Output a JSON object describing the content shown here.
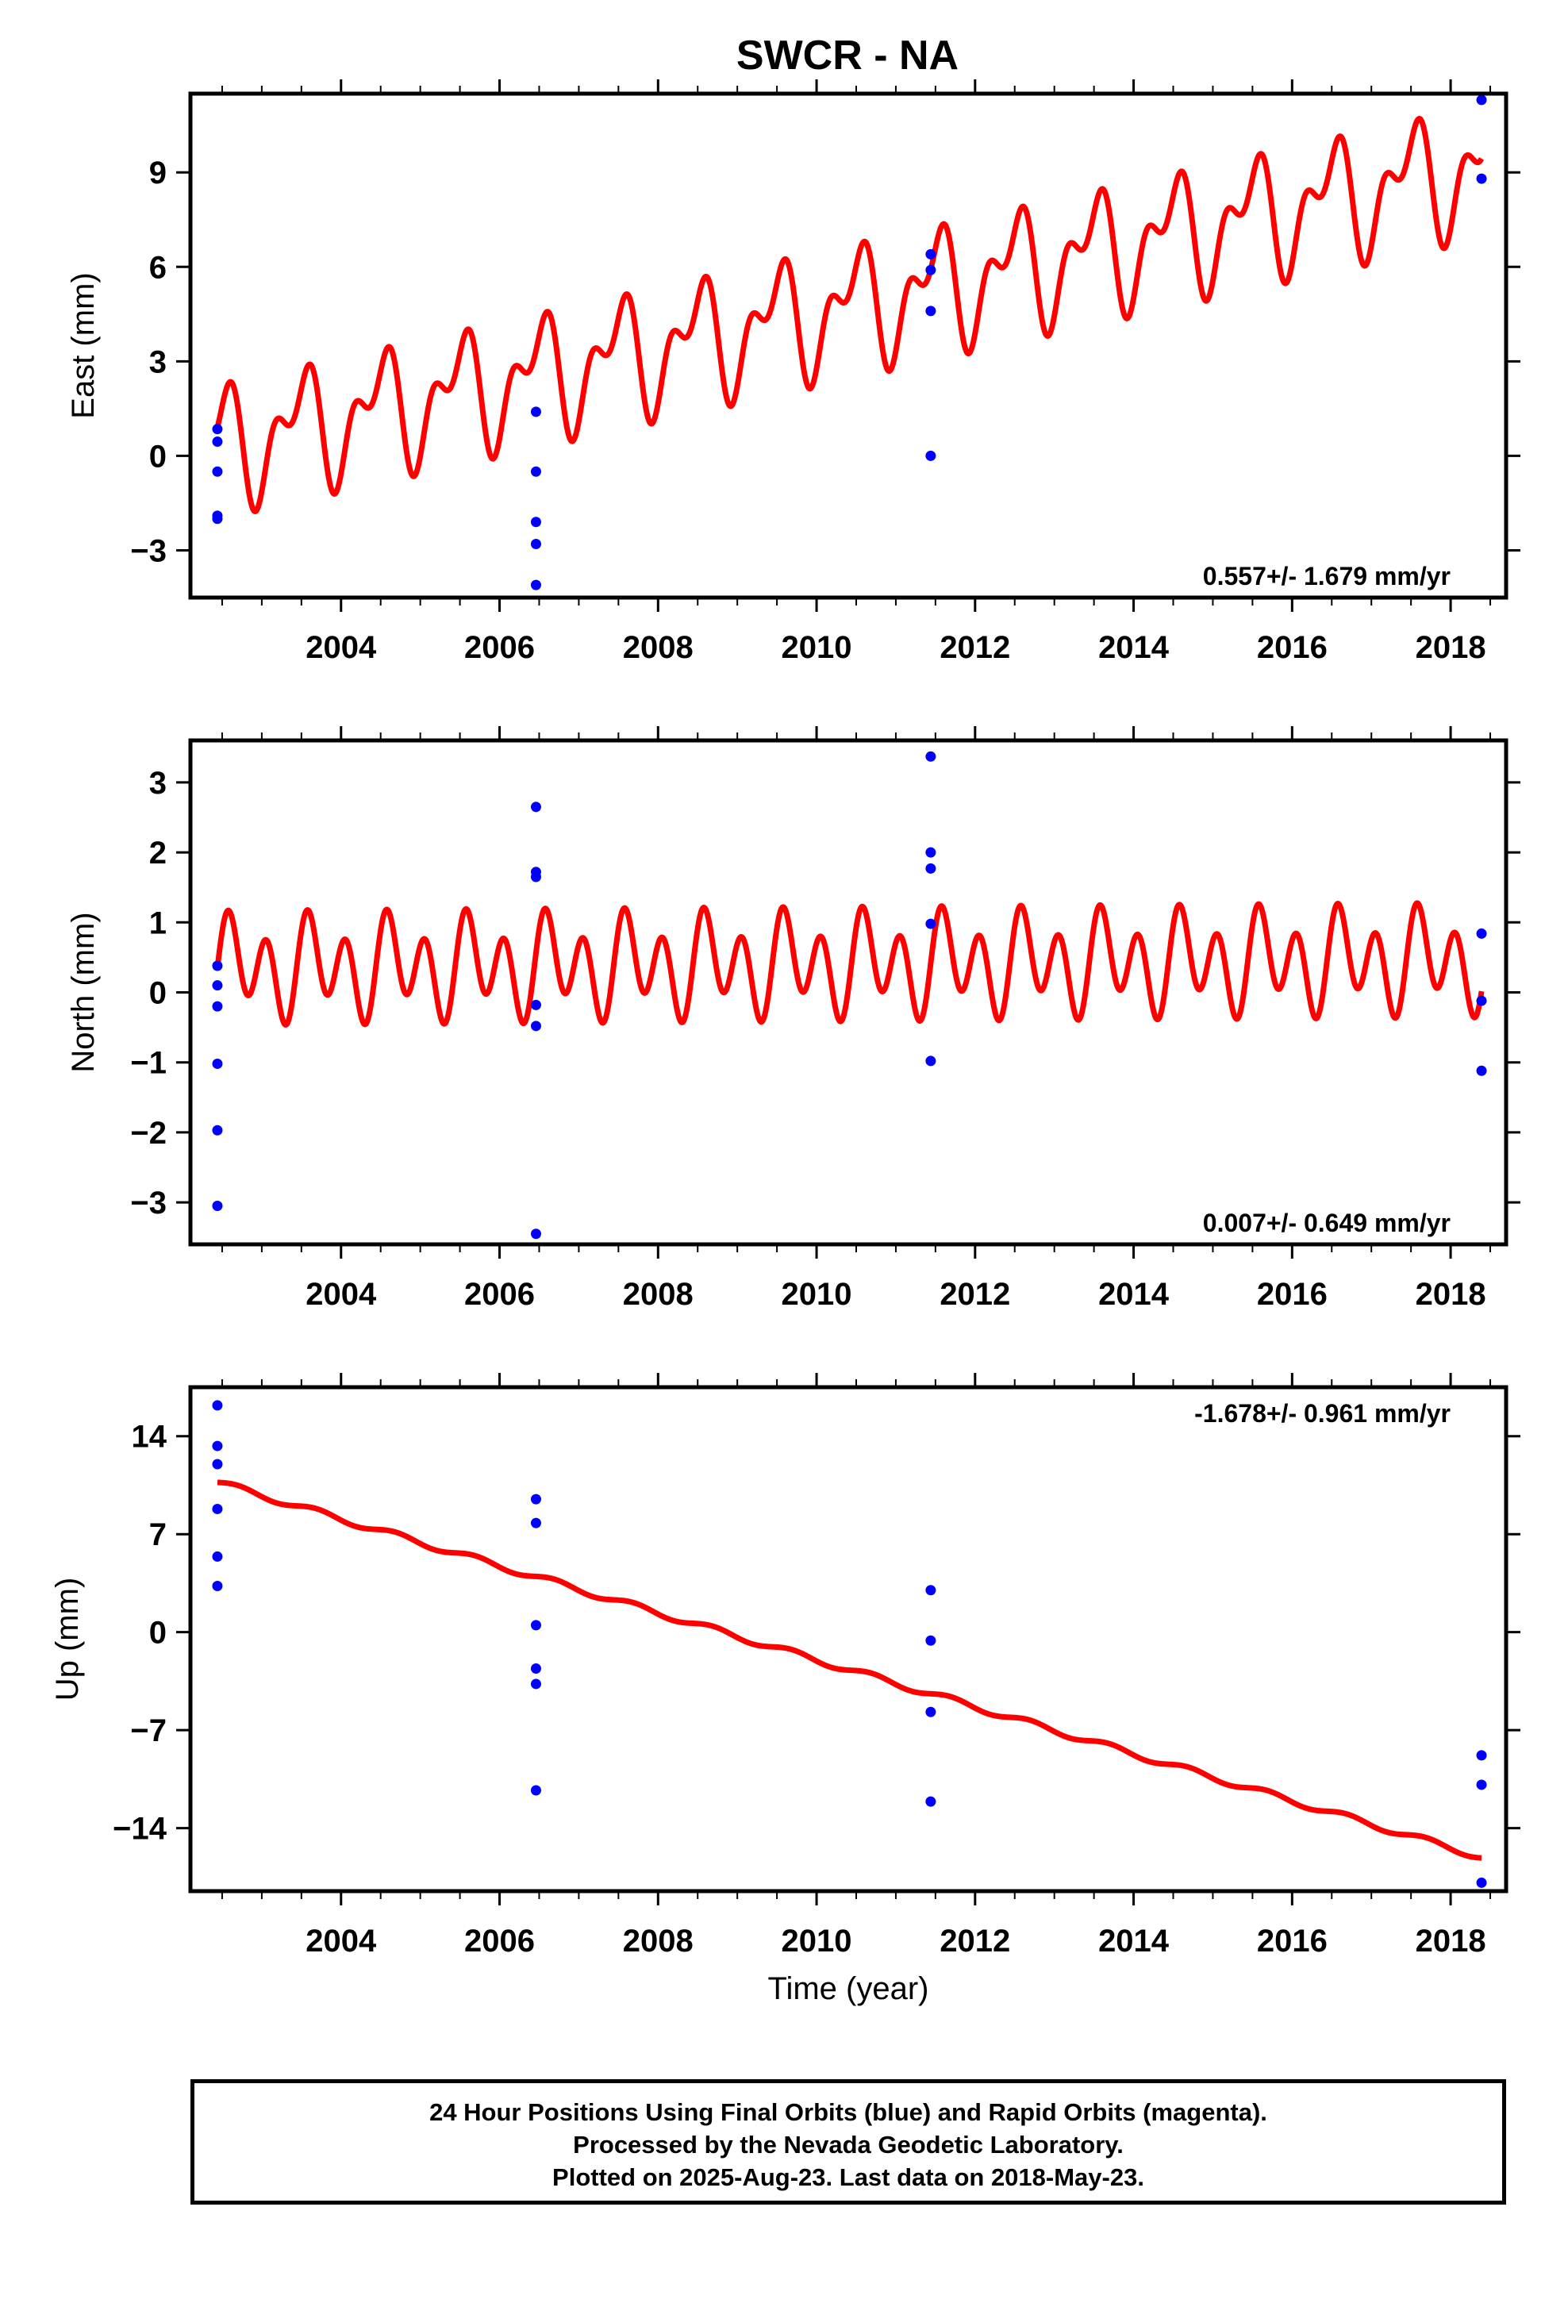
{
  "title": "SWCR - NA",
  "colors": {
    "model": "#ff0000",
    "points": "#0000ff",
    "frame": "#000000"
  },
  "footer": {
    "line1": "24 Hour Positions Using Final Orbits (blue) and Rapid Orbits (magenta).",
    "line2": "Processed by the Nevada Geodetic Laboratory.",
    "line3": "Plotted on 2025-Aug-23. Last data on 2018-May-23."
  },
  "chart_data": [
    {
      "type": "scatter",
      "ylabel": "East (mm)",
      "xlabel": "",
      "xlim": [
        2002.1,
        2018.7
      ],
      "ylim": [
        -4.5,
        11.5
      ],
      "xticks": [
        2004,
        2006,
        2008,
        2010,
        2012,
        2014,
        2016,
        2018
      ],
      "yticks": [
        -3,
        0,
        3,
        6,
        9
      ],
      "ytick_labels": [
        "−3",
        "0",
        "3",
        "6",
        "9"
      ],
      "rate_label": "0.557+/- 1.679 mm/yr",
      "rate_position": "bottom-right",
      "points": [
        [
          2002.44,
          0.85
        ],
        [
          2002.44,
          0.45
        ],
        [
          2002.44,
          -0.5
        ],
        [
          2002.44,
          -1.9
        ],
        [
          2002.44,
          -2.0
        ],
        [
          2006.46,
          1.4
        ],
        [
          2006.46,
          -0.5
        ],
        [
          2006.46,
          -2.1
        ],
        [
          2006.46,
          -2.8
        ],
        [
          2006.46,
          -4.1
        ],
        [
          2011.44,
          6.4
        ],
        [
          2011.44,
          5.9
        ],
        [
          2011.44,
          4.6
        ],
        [
          2011.44,
          0.0
        ],
        [
          2018.39,
          11.3
        ],
        [
          2018.39,
          8.8
        ]
      ],
      "model": {
        "intercept": 0.3,
        "slope": 0.557,
        "t0": 2002.44,
        "annual_amp": 1.5,
        "annual_phase": 1.3,
        "semiannual_amp": 1.0,
        "semiannual_phase": -1.0
      }
    },
    {
      "type": "scatter",
      "ylabel": "North (mm)",
      "xlabel": "",
      "xlim": [
        2002.1,
        2018.7
      ],
      "ylim": [
        -3.6,
        3.6
      ],
      "xticks": [
        2004,
        2006,
        2008,
        2010,
        2012,
        2014,
        2016,
        2018
      ],
      "yticks": [
        -3,
        -2,
        -1,
        0,
        1,
        2,
        3
      ],
      "ytick_labels": [
        "−3",
        "−2",
        "−1",
        "0",
        "1",
        "2",
        "3"
      ],
      "rate_label": "0.007+/- 0.649 mm/yr",
      "rate_position": "bottom-right",
      "points": [
        [
          2002.44,
          0.38
        ],
        [
          2002.44,
          0.1
        ],
        [
          2002.44,
          -0.2
        ],
        [
          2002.44,
          -1.02
        ],
        [
          2002.44,
          -1.97
        ],
        [
          2002.44,
          -3.05
        ],
        [
          2006.46,
          2.65
        ],
        [
          2006.46,
          1.72
        ],
        [
          2006.46,
          1.65
        ],
        [
          2006.46,
          -0.18
        ],
        [
          2006.46,
          -0.48
        ],
        [
          2006.46,
          -3.45
        ],
        [
          2011.44,
          3.37
        ],
        [
          2011.44,
          2.0
        ],
        [
          2011.44,
          1.77
        ],
        [
          2011.44,
          0.98
        ],
        [
          2011.44,
          -0.98
        ],
        [
          2018.39,
          0.84
        ],
        [
          2018.39,
          -0.12
        ],
        [
          2018.39,
          -1.12
        ]
      ],
      "model": {
        "intercept": 0.35,
        "slope": 0.007,
        "t0": 2002.44,
        "annual_amp": 0.3,
        "annual_phase": 0.0,
        "semiannual_amp": 0.6,
        "semiannual_phase": 0.0
      }
    },
    {
      "type": "scatter",
      "ylabel": "Up (mm)",
      "xlabel": "Time (year)",
      "xlim": [
        2002.1,
        2018.7
      ],
      "ylim": [
        -18.5,
        17.5
      ],
      "xticks": [
        2004,
        2006,
        2008,
        2010,
        2012,
        2014,
        2016,
        2018
      ],
      "yticks": [
        -14,
        -7,
        0,
        7,
        14
      ],
      "ytick_labels": [
        "−14",
        "−7",
        "0",
        "7",
        "14"
      ],
      "rate_label": "-1.678+/- 0.961 mm/yr",
      "rate_position": "top-right",
      "points": [
        [
          2002.44,
          16.2
        ],
        [
          2002.44,
          13.3
        ],
        [
          2002.44,
          12.0
        ],
        [
          2002.44,
          8.8
        ],
        [
          2002.44,
          5.4
        ],
        [
          2002.44,
          3.3
        ],
        [
          2006.46,
          9.5
        ],
        [
          2006.46,
          7.8
        ],
        [
          2006.46,
          0.5
        ],
        [
          2006.46,
          -2.6
        ],
        [
          2006.46,
          -3.7
        ],
        [
          2006.46,
          -11.3
        ],
        [
          2011.44,
          3.0
        ],
        [
          2011.44,
          -0.6
        ],
        [
          2011.44,
          -5.7
        ],
        [
          2011.44,
          -12.1
        ],
        [
          2018.39,
          -8.8
        ],
        [
          2018.39,
          -10.9
        ],
        [
          2018.39,
          -17.9
        ]
      ],
      "model": {
        "intercept": 10.7,
        "slope": -1.678,
        "t0": 2002.44,
        "annual_amp": 0.22,
        "annual_phase": 0.0,
        "semiannual_amp": 0.0,
        "semiannual_phase": 0.0
      }
    }
  ]
}
